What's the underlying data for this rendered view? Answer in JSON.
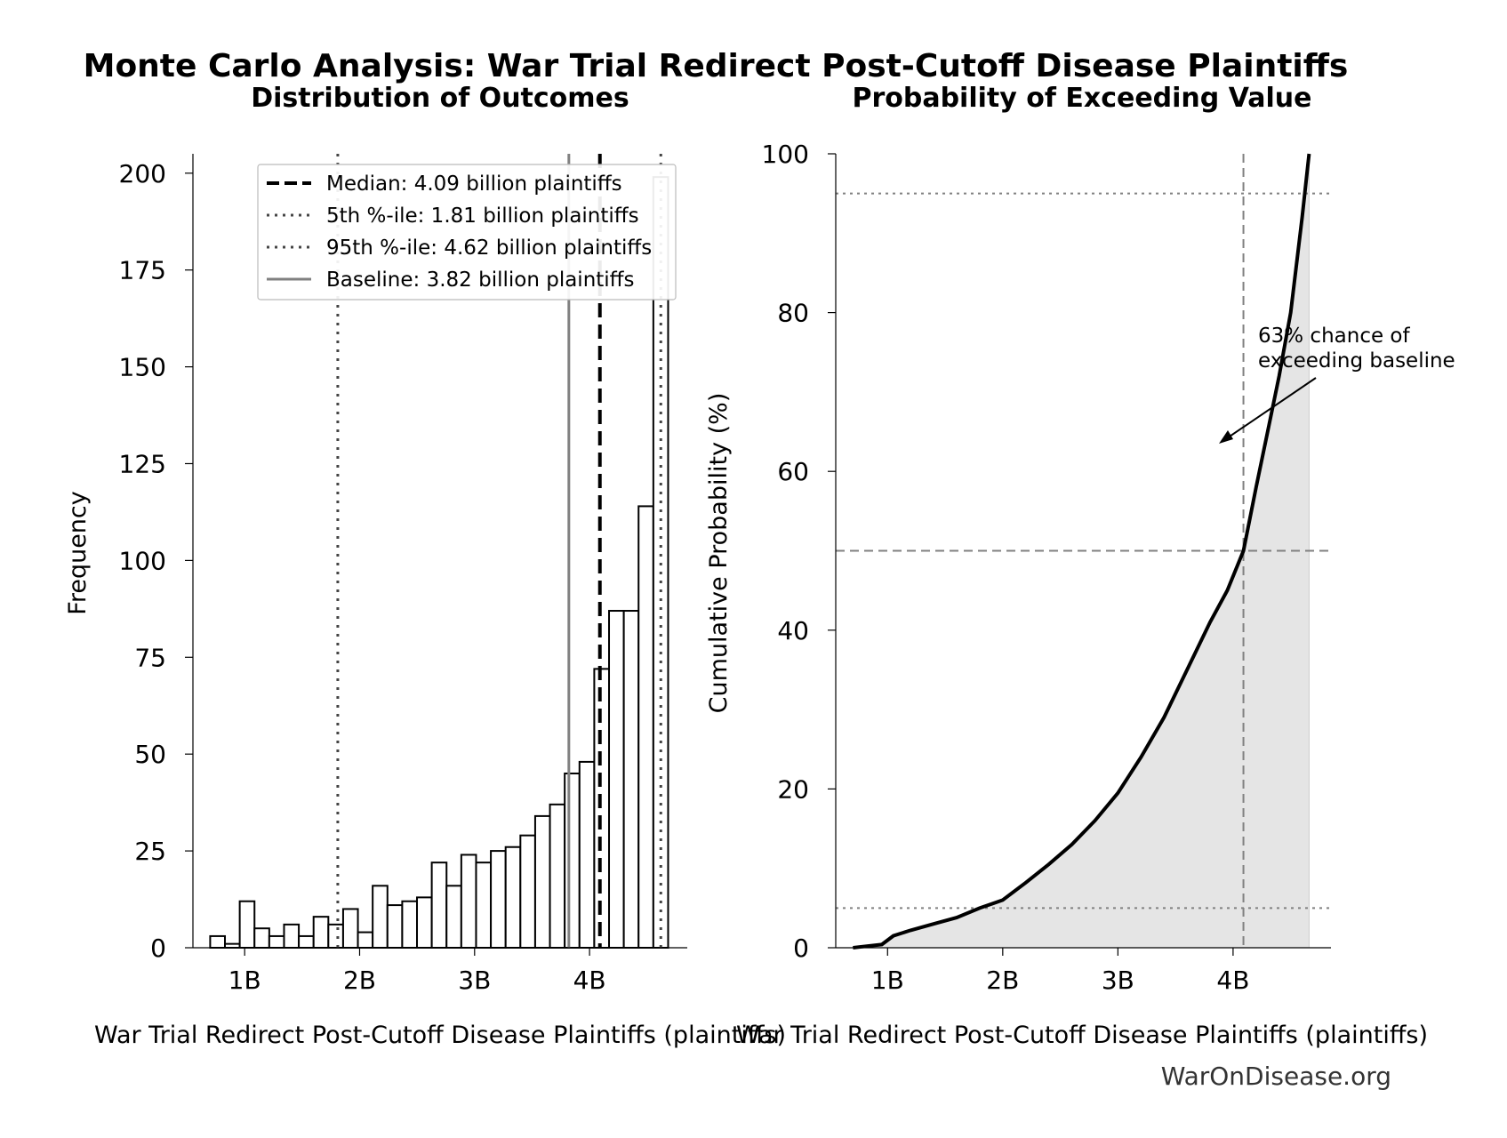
{
  "title": "Monte Carlo Analysis: War Trial Redirect Post-Cutoff Disease Plaintiffs",
  "footer": "WarOnDisease.org",
  "colors": {
    "bar_fill": "#ffffff",
    "bar_edge": "#000000",
    "curve": "#000000",
    "area_fill": "#e5e5e5",
    "ref_line": "#808080"
  },
  "chart_data": [
    {
      "type": "bar",
      "title": "Distribution of Outcomes",
      "xlabel": "War Trial Redirect Post-Cutoff Disease Plaintiffs (plaintiffs)",
      "ylabel": "Frequency",
      "xunit": "billion plaintiffs",
      "xlim": [
        0.55,
        4.85
      ],
      "ylim": [
        0,
        205
      ],
      "xticks": [
        1,
        2,
        3,
        4
      ],
      "xtick_labels": [
        "1B",
        "2B",
        "3B",
        "4B"
      ],
      "yticks": [
        0,
        25,
        50,
        75,
        100,
        125,
        150,
        175,
        200
      ],
      "bin_start": 0.7,
      "bin_width": 0.1285,
      "values": [
        3,
        1,
        12,
        5,
        3,
        6,
        3,
        8,
        6,
        10,
        4,
        16,
        11,
        12,
        13,
        22,
        16,
        24,
        22,
        25,
        26,
        29,
        34,
        37,
        45,
        48,
        72,
        87,
        87,
        114,
        199
      ],
      "reference_lines": [
        {
          "name": "median",
          "label": "Median: 4.09 billion plaintiffs",
          "x": 4.09,
          "style": "dashed",
          "color": "#000000"
        },
        {
          "name": "p5",
          "label": "5th %-ile: 1.81 billion plaintiffs",
          "x": 1.81,
          "style": "dotted",
          "color": "#444444"
        },
        {
          "name": "p95",
          "label": "95th %-ile: 4.62 billion plaintiffs",
          "x": 4.62,
          "style": "dotted",
          "color": "#444444"
        },
        {
          "name": "baseline",
          "label": "Baseline: 3.82 billion plaintiffs",
          "x": 3.82,
          "style": "solid",
          "color": "#808080"
        }
      ],
      "legend_position": "top-right"
    },
    {
      "type": "line",
      "title": "Probability of Exceeding Value",
      "xlabel": "War Trial Redirect Post-Cutoff Disease Plaintiffs (plaintiffs)",
      "ylabel": "Cumulative Probability (%)",
      "xunit": "billion plaintiffs",
      "xlim": [
        0.55,
        4.85
      ],
      "ylim": [
        0,
        100
      ],
      "xticks": [
        1,
        2,
        3,
        4
      ],
      "xtick_labels": [
        "1B",
        "2B",
        "3B",
        "4B"
      ],
      "yticks": [
        0,
        20,
        40,
        60,
        80,
        100
      ],
      "x": [
        0.7,
        0.82,
        0.95,
        1.05,
        1.2,
        1.4,
        1.6,
        1.8,
        2.0,
        2.2,
        2.4,
        2.6,
        2.8,
        3.0,
        3.2,
        3.4,
        3.6,
        3.8,
        3.95,
        4.09,
        4.2,
        4.3,
        4.4,
        4.5,
        4.6,
        4.66
      ],
      "y": [
        0,
        0.2,
        0.4,
        1.5,
        2.2,
        3.0,
        3.8,
        5.0,
        6.0,
        8.2,
        10.5,
        13.0,
        16.0,
        19.5,
        24.0,
        29.0,
        35.0,
        41.0,
        45.0,
        50.0,
        58.0,
        65.0,
        72.0,
        80.0,
        92.0,
        100.0
      ],
      "hlines": [
        5,
        50,
        95
      ],
      "vline_x": 4.09,
      "annotation": {
        "line1": "63% chance of",
        "line2": "exceeding baseline"
      }
    }
  ]
}
